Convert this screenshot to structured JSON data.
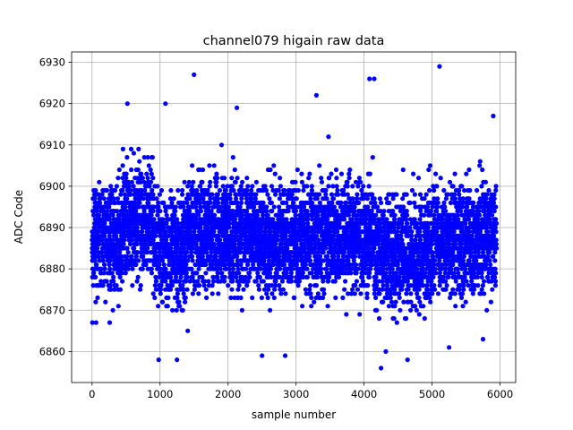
{
  "chart_data": {
    "type": "scatter",
    "title": "channel079 higain raw data",
    "xlabel": "sample number",
    "ylabel": "ADC Code",
    "xlim": [
      -300,
      6230
    ],
    "ylim": [
      6852.5,
      6932.5
    ],
    "x_ticks": [
      0,
      1000,
      2000,
      3000,
      4000,
      5000,
      6000
    ],
    "y_ticks": [
      6860,
      6870,
      6880,
      6890,
      6900,
      6910,
      6920,
      6930
    ],
    "grid": true,
    "series": [
      {
        "color": "#0000ff",
        "n_samples": 6000,
        "baseline_segments": [
          {
            "x": [
              0,
              450
            ],
            "center": 6888
          },
          {
            "x": [
              450,
              900
            ],
            "center": 6892
          },
          {
            "x": [
              900,
              1400
            ],
            "center": 6885
          },
          {
            "x": [
              1400,
              2000
            ],
            "center": 6889
          },
          {
            "x": [
              2000,
              2600
            ],
            "center": 6888
          },
          {
            "x": [
              2600,
              3500
            ],
            "center": 6887
          },
          {
            "x": [
              3500,
              4150
            ],
            "center": 6889
          },
          {
            "x": [
              4150,
              5000
            ],
            "center": 6884
          },
          {
            "x": [
              5000,
              5600
            ],
            "center": 6887
          },
          {
            "x": [
              5600,
              5950
            ],
            "center": 6888
          }
        ],
        "spread_sd": 6.5,
        "outliers": [
          {
            "x": 5,
            "y": 6867
          },
          {
            "x": 60,
            "y": 6867
          },
          {
            "x": 260,
            "y": 6867
          },
          {
            "x": 520,
            "y": 6920
          },
          {
            "x": 980,
            "y": 6858
          },
          {
            "x": 1080,
            "y": 6920
          },
          {
            "x": 1250,
            "y": 6858
          },
          {
            "x": 1500,
            "y": 6927
          },
          {
            "x": 2130,
            "y": 6919
          },
          {
            "x": 2500,
            "y": 6859
          },
          {
            "x": 2840,
            "y": 6859
          },
          {
            "x": 3300,
            "y": 6922
          },
          {
            "x": 4080,
            "y": 6926
          },
          {
            "x": 4150,
            "y": 6926
          },
          {
            "x": 4250,
            "y": 6856
          },
          {
            "x": 4320,
            "y": 6860
          },
          {
            "x": 4640,
            "y": 6858
          },
          {
            "x": 5110,
            "y": 6929
          },
          {
            "x": 5250,
            "y": 6861
          },
          {
            "x": 5750,
            "y": 6863
          },
          {
            "x": 5900,
            "y": 6917
          }
        ]
      }
    ]
  }
}
